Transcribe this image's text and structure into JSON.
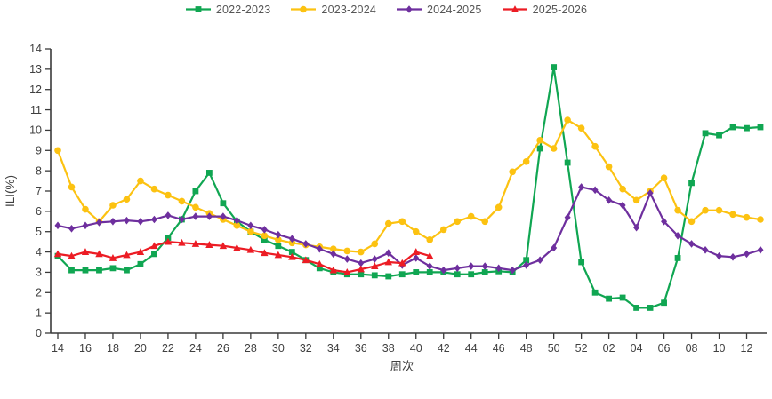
{
  "chart_data": {
    "type": "line",
    "xlabel": "周次",
    "ylabel": "ILI(%)",
    "ylim": [
      0,
      14
    ],
    "y_ticks": [
      "0",
      "1",
      "2",
      "3",
      "4",
      "5",
      "6",
      "7",
      "8",
      "9",
      "10",
      "11",
      "12",
      "13",
      "14"
    ],
    "grid": "off",
    "legend_position": "top-center",
    "x_labels": [
      "14",
      "15",
      "16",
      "17",
      "18",
      "19",
      "20",
      "21",
      "22",
      "23",
      "24",
      "25",
      "26",
      "27",
      "28",
      "29",
      "30",
      "31",
      "32",
      "33",
      "34",
      "35",
      "36",
      "37",
      "38",
      "39",
      "40",
      "41",
      "42",
      "43",
      "44",
      "45",
      "46",
      "47",
      "48",
      "49",
      "50",
      "51",
      "52",
      "01",
      "02",
      "03",
      "04",
      "05",
      "06",
      "07",
      "08",
      "09",
      "10",
      "11",
      "12",
      "13"
    ],
    "x_tick_every": 2,
    "series": [
      {
        "name": "2022-2023",
        "color": "#10a652",
        "marker": "square",
        "values": [
          3.8,
          3.1,
          3.1,
          3.1,
          3.2,
          3.1,
          3.4,
          3.9,
          4.7,
          5.6,
          7.0,
          7.9,
          6.4,
          5.5,
          5.0,
          4.6,
          4.3,
          4.0,
          3.6,
          3.2,
          3.0,
          2.9,
          2.9,
          2.85,
          2.8,
          2.9,
          3.0,
          3.0,
          3.0,
          2.9,
          2.9,
          3.0,
          3.05,
          3.0,
          3.6,
          9.1,
          13.1,
          8.4,
          3.5,
          2.0,
          1.7,
          1.75,
          1.25,
          1.25,
          1.5,
          3.7,
          7.4,
          9.85,
          9.75,
          10.15,
          10.1,
          10.15
        ]
      },
      {
        "name": "2023-2024",
        "color": "#fcc211",
        "marker": "circle",
        "values": [
          9.0,
          7.2,
          6.1,
          5.5,
          6.3,
          6.6,
          7.5,
          7.1,
          6.8,
          6.5,
          6.2,
          5.9,
          5.6,
          5.3,
          5.0,
          4.8,
          4.6,
          4.45,
          4.35,
          4.25,
          4.15,
          4.05,
          4.0,
          4.4,
          5.4,
          5.5,
          5.0,
          4.6,
          5.1,
          5.5,
          5.75,
          5.5,
          6.2,
          7.95,
          8.45,
          9.5,
          9.1,
          10.5,
          10.1,
          9.2,
          8.2,
          7.1,
          6.55,
          7.0,
          7.65,
          6.05,
          5.5,
          6.05,
          6.05,
          5.85,
          5.7,
          5.6
        ]
      },
      {
        "name": "2024-2025",
        "color": "#6e2f9e",
        "marker": "diamond",
        "values": [
          5.3,
          5.15,
          5.3,
          5.45,
          5.5,
          5.55,
          5.5,
          5.6,
          5.8,
          5.6,
          5.75,
          5.75,
          5.75,
          5.55,
          5.3,
          5.1,
          4.85,
          4.65,
          4.4,
          4.15,
          3.9,
          3.65,
          3.45,
          3.65,
          3.95,
          3.35,
          3.7,
          3.3,
          3.1,
          3.2,
          3.3,
          3.3,
          3.2,
          3.1,
          3.35,
          3.6,
          4.2,
          5.7,
          7.2,
          7.05,
          6.55,
          6.3,
          5.2,
          6.9,
          5.5,
          4.8,
          4.4,
          4.1,
          3.8,
          3.75,
          3.9,
          4.1
        ]
      },
      {
        "name": "2025-2026",
        "color": "#ec1c24",
        "marker": "triangle",
        "values": [
          3.9,
          3.8,
          4.0,
          3.9,
          3.7,
          3.85,
          4.0,
          4.3,
          4.5,
          4.45,
          4.4,
          4.35,
          4.3,
          4.2,
          4.1,
          3.95,
          3.85,
          3.75,
          3.6,
          3.4,
          3.1,
          3.0,
          3.15,
          3.3,
          3.5,
          3.45,
          4.0,
          3.8,
          null,
          null,
          null,
          null,
          null,
          null,
          null,
          null,
          null,
          null,
          null,
          null,
          null,
          null,
          null,
          null,
          null,
          null,
          null,
          null,
          null,
          null,
          null,
          null
        ]
      }
    ],
    "style": {
      "axis_color": "#3a3a3a",
      "tick_label_color": "#404040",
      "axis_title_color": "#404040",
      "legend_text_color": "#565656",
      "background": "#ffffff"
    }
  }
}
